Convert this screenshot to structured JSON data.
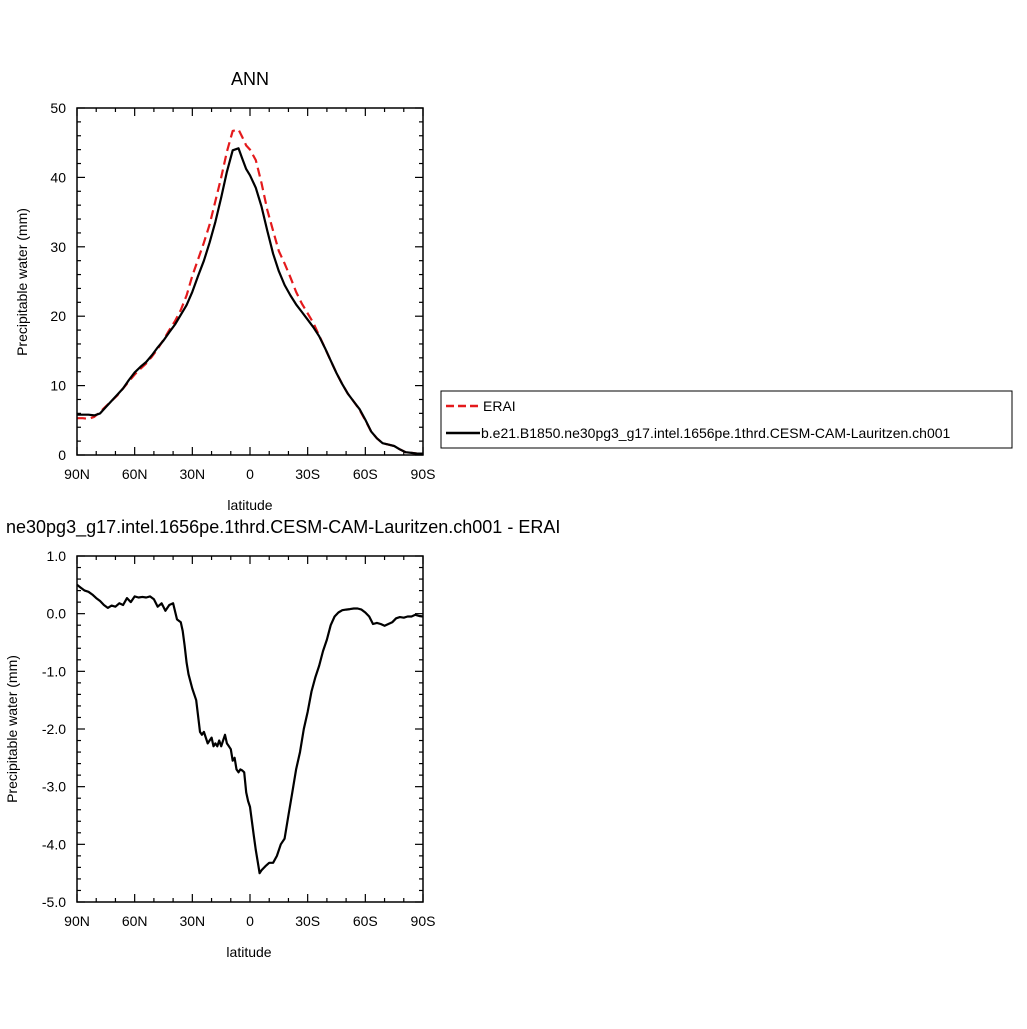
{
  "chart_data": [
    {
      "type": "line",
      "title": "ANN",
      "xlabel": "latitude",
      "ylabel": "Precipitable water (mm)",
      "xlim": [
        90,
        -90
      ],
      "ylim": [
        0,
        50
      ],
      "x_tick_values": [
        90,
        60,
        30,
        0,
        -30,
        -60,
        -90
      ],
      "x_tick_labels": [
        "90N",
        "60N",
        "30N",
        "0",
        "30S",
        "60S",
        "90S"
      ],
      "y_tick_values": [
        0,
        10,
        20,
        30,
        40,
        50
      ],
      "y_tick_labels": [
        "0",
        "10",
        "20",
        "30",
        "40",
        "50"
      ],
      "legend_placement": "right",
      "series": [
        {
          "name": "ERAI",
          "color": "#e41a1c",
          "style": "dashed",
          "x": [
            90,
            87,
            84,
            81,
            78,
            75,
            72,
            69,
            66,
            63,
            60,
            57,
            54,
            51,
            48,
            45,
            42,
            39,
            36,
            33,
            30,
            27,
            24,
            21,
            18,
            15,
            12,
            9,
            6,
            4,
            2,
            0,
            -3,
            -6,
            -9,
            -12,
            -15,
            -18,
            -21,
            -24,
            -27,
            -30,
            -33,
            -36,
            -39,
            -42,
            -45,
            -48,
            -51,
            -54,
            -57,
            -60,
            -63,
            -66,
            -69,
            -72,
            -75,
            -78,
            -81,
            -84,
            -87,
            -90
          ],
          "y": [
            5.3,
            5.3,
            5.2,
            5.5,
            6.2,
            7.0,
            7.8,
            8.6,
            9.6,
            10.6,
            11.6,
            12.4,
            13.2,
            14.2,
            15.3,
            16.6,
            18.0,
            19.3,
            20.9,
            23.0,
            25.8,
            28.2,
            30.6,
            33.2,
            36.6,
            40.0,
            43.7,
            46.7,
            46.9,
            45.8,
            44.6,
            44.0,
            42.5,
            39.2,
            35.3,
            32.3,
            29.4,
            27.6,
            25.6,
            23.5,
            21.8,
            20.4,
            19.0,
            17.2,
            15.4,
            13.6,
            11.8,
            10.2,
            8.8,
            7.7,
            6.5,
            5.0,
            3.4,
            2.4,
            1.7,
            1.5,
            1.3,
            0.8,
            0.4,
            0.3,
            0.2,
            0.2
          ]
        },
        {
          "name": "b.e21.B1850.ne30pg3_g17.intel.1656pe.1thrd.CESM-CAM-Lauritzen.ch001",
          "color": "#000000",
          "style": "solid",
          "x": [
            90,
            87,
            84,
            81,
            78,
            75,
            72,
            69,
            66,
            63,
            60,
            57,
            54,
            51,
            48,
            45,
            42,
            39,
            36,
            33,
            30,
            27,
            24,
            21,
            18,
            15,
            12,
            9,
            6,
            4,
            2,
            0,
            -3,
            -6,
            -9,
            -12,
            -15,
            -18,
            -21,
            -24,
            -27,
            -30,
            -33,
            -36,
            -39,
            -42,
            -45,
            -48,
            -51,
            -54,
            -57,
            -60,
            -63,
            -66,
            -69,
            -72,
            -75,
            -78,
            -81,
            -84,
            -87,
            -90
          ],
          "y": [
            5.8,
            5.8,
            5.8,
            5.7,
            6.0,
            6.9,
            7.8,
            8.7,
            9.6,
            10.8,
            11.9,
            12.7,
            13.4,
            14.4,
            15.5,
            16.5,
            17.7,
            18.8,
            20.2,
            21.6,
            23.5,
            25.8,
            28.0,
            30.6,
            33.6,
            37.1,
            40.8,
            43.9,
            44.2,
            42.7,
            41.2,
            40.3,
            38.5,
            35.8,
            32.3,
            29.0,
            26.5,
            24.5,
            23.0,
            21.7,
            20.6,
            19.5,
            18.4,
            17.1,
            15.4,
            13.6,
            11.8,
            10.2,
            8.8,
            7.7,
            6.6,
            5.1,
            3.4,
            2.4,
            1.7,
            1.5,
            1.3,
            0.8,
            0.4,
            0.3,
            0.2,
            0.2
          ]
        }
      ]
    },
    {
      "type": "line",
      "title": "ne30pg3_g17.intel.1656pe.1thrd.CESM-CAM-Lauritzen.ch001 - ERAI",
      "xlabel": "latitude",
      "ylabel": "Precipitable water (mm)",
      "xlim": [
        90,
        -90
      ],
      "ylim": [
        -5.0,
        1.0
      ],
      "x_tick_values": [
        90,
        60,
        30,
        0,
        -30,
        -60,
        -90
      ],
      "x_tick_labels": [
        "90N",
        "60N",
        "30N",
        "0",
        "30S",
        "60S",
        "90S"
      ],
      "y_tick_values": [
        1.0,
        0.0,
        -1.0,
        -2.0,
        -3.0,
        -4.0,
        -5.0
      ],
      "y_tick_labels": [
        "1.0",
        "0.0",
        "-1.0",
        "-2.0",
        "-3.0",
        "-4.0",
        "-5.0"
      ],
      "series": [
        {
          "color": "#000000",
          "style": "solid",
          "x": [
            90,
            88,
            86,
            84,
            82,
            80,
            78,
            76,
            74,
            72,
            70,
            68,
            66,
            64,
            62,
            60,
            58,
            56,
            54,
            52,
            50,
            48,
            46,
            44,
            42,
            40,
            38,
            36,
            35,
            34,
            33,
            32,
            30,
            28,
            26,
            25,
            24,
            23,
            22,
            21,
            20,
            19,
            18,
            17,
            16,
            15,
            14,
            13,
            12,
            11,
            10,
            9,
            8,
            7,
            6,
            5,
            4,
            3,
            2,
            1,
            0,
            -1,
            -2,
            -3,
            -4,
            -5,
            -6,
            -8,
            -10,
            -12,
            -14,
            -16,
            -18,
            -20,
            -22,
            -24,
            -26,
            -28,
            -30,
            -32,
            -34,
            -36,
            -38,
            -40,
            -42,
            -44,
            -46,
            -48,
            -50,
            -52,
            -54,
            -56,
            -58,
            -60,
            -62,
            -64,
            -66,
            -68,
            -70,
            -72,
            -74,
            -76,
            -78,
            -80,
            -82,
            -84,
            -86,
            -88,
            -90
          ],
          "y": [
            0.5,
            0.45,
            0.4,
            0.38,
            0.33,
            0.27,
            0.22,
            0.15,
            0.1,
            0.14,
            0.12,
            0.18,
            0.15,
            0.27,
            0.2,
            0.3,
            0.28,
            0.29,
            0.28,
            0.3,
            0.25,
            0.12,
            0.18,
            0.05,
            0.15,
            0.18,
            -0.1,
            -0.15,
            -0.3,
            -0.55,
            -0.85,
            -1.05,
            -1.3,
            -1.5,
            -2.05,
            -2.1,
            -2.05,
            -2.15,
            -2.25,
            -2.2,
            -2.15,
            -2.3,
            -2.25,
            -2.3,
            -2.2,
            -2.3,
            -2.2,
            -2.1,
            -2.25,
            -2.3,
            -2.35,
            -2.55,
            -2.5,
            -2.7,
            -2.75,
            -2.7,
            -2.72,
            -2.75,
            -3.1,
            -3.25,
            -3.35,
            -3.6,
            -3.85,
            -4.1,
            -4.3,
            -4.5,
            -4.45,
            -4.38,
            -4.32,
            -4.32,
            -4.2,
            -4.0,
            -3.9,
            -3.5,
            -3.1,
            -2.7,
            -2.4,
            -2.0,
            -1.7,
            -1.35,
            -1.1,
            -0.9,
            -0.65,
            -0.45,
            -0.2,
            -0.05,
            0.02,
            0.06,
            0.07,
            0.08,
            0.09,
            0.09,
            0.07,
            0.02,
            -0.05,
            -0.18,
            -0.16,
            -0.18,
            -0.21,
            -0.18,
            -0.15,
            -0.08,
            -0.06,
            -0.07,
            -0.05,
            -0.05,
            -0.02,
            -0.04,
            -0.05
          ]
        }
      ]
    }
  ]
}
